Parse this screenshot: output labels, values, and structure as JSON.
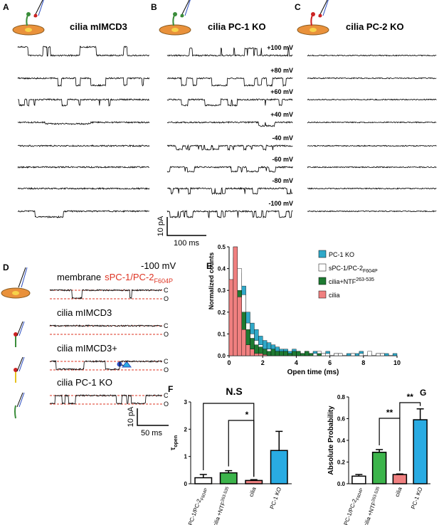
{
  "panels": {
    "A": {
      "letter": "A",
      "title": "cilia mIMCD3"
    },
    "B": {
      "letter": "B",
      "title": "cilia PC-1 KO"
    },
    "C": {
      "letter": "C",
      "title": "cilia PC-2 KO"
    },
    "voltages": [
      "+100 mV",
      "+80 mV",
      "+60 mV",
      "+40 mV",
      "-40 mV",
      "-60 mV",
      "-80 mV",
      "-100 mV"
    ],
    "scale_abc": {
      "current": "10 pA",
      "time": "100 ms"
    },
    "D": {
      "letter": "D",
      "voltage": "-100 mV",
      "rows": [
        {
          "label": "membrane",
          "label_red": "sPC-1/PC-2",
          "label_red_sub": "F604P"
        },
        {
          "label": "cilia mIMCD3"
        },
        {
          "label": "cilia mIMCD3+"
        },
        {
          "label": "cilia  PC-1 KO"
        }
      ],
      "closed": "C",
      "open": "O",
      "scale": {
        "current": "10 pA",
        "time": "50 ms"
      }
    }
  },
  "chart_data": [
    {
      "panel": "E",
      "type": "histogram",
      "xlabel": "Open time (ms)",
      "ylabel": "Normalized counts",
      "bins": [
        0,
        0.25,
        0.5,
        0.75,
        1,
        1.25,
        1.5,
        1.75,
        2,
        2.25,
        2.5,
        2.75,
        3,
        3.25,
        3.5,
        3.75,
        4,
        4.25,
        4.5,
        4.75,
        5,
        5.25,
        5.5,
        5.75,
        6,
        6.25,
        6.5,
        6.75,
        7,
        7.25,
        7.5,
        7.75,
        8,
        8.25,
        8.5,
        8.75,
        9,
        9.25,
        9.5,
        9.75,
        10
      ],
      "xlim": [
        0,
        10
      ],
      "xticks": [
        0,
        2,
        4,
        6,
        8,
        10
      ],
      "ylim": [
        0,
        0.5
      ],
      "yticks": [
        {
          "value": 0,
          "label": "0.0"
        },
        0.1,
        0.2,
        0.3,
        0.4,
        0.5
      ],
      "series": [
        {
          "name": "PC-1 KO",
          "color": "#2fa8c8",
          "values": [
            0.3,
            0.5,
            0.38,
            0.32,
            0.2,
            0.15,
            0.12,
            0.09,
            0.07,
            0.06,
            0.05,
            0.04,
            0.03,
            0.03,
            0.02,
            0.03,
            0.02,
            0.01,
            0.02,
            0.01,
            0.02,
            0.01,
            0.01,
            0.02,
            0,
            0.01,
            0.01,
            0,
            0.01,
            0.01,
            0.01,
            0.02,
            0,
            0.01,
            0,
            0.01,
            0.01,
            0.01,
            0,
            0.01
          ]
        },
        {
          "name": "sPC-1/PC-2",
          "name_sub": "F604P",
          "color": "#ffffff",
          "values": [
            0.3,
            0.45,
            0.4,
            0.28,
            0.15,
            0.1,
            0.07,
            0.05,
            0.03,
            0.03,
            0.02,
            0.02,
            0.01,
            0.02,
            0.01,
            0.01,
            0.02,
            0.01,
            0.01,
            0.01,
            0.01,
            0.02,
            0.01,
            0.01,
            0,
            0.01,
            0.01,
            0,
            0,
            0.01,
            0,
            0.01,
            0,
            0.02,
            0,
            0.01,
            0.01,
            0,
            0,
            0
          ]
        },
        {
          "name": "cilia+NTF",
          "name_sup": "263-535",
          "color": "#1e7a32",
          "values": [
            0.25,
            0.45,
            0.3,
            0.2,
            0.12,
            0.08,
            0.05,
            0.04,
            0.03,
            0.02,
            0.03,
            0.02,
            0.02,
            0.02,
            0.01,
            0.02,
            0.02,
            0.01,
            0.02,
            0.01,
            0,
            0.01,
            0,
            0,
            0,
            0,
            0,
            0,
            0,
            0,
            0,
            0,
            0,
            0,
            0,
            0,
            0,
            0,
            0,
            0
          ]
        },
        {
          "name": "cilia",
          "color": "#f08080",
          "values": [
            0.35,
            0.5,
            0.27,
            0.12,
            0.05,
            0.03,
            0.01,
            0.01,
            0.005,
            0,
            0,
            0,
            0,
            0,
            0,
            0,
            0,
            0,
            0,
            0,
            0,
            0,
            0,
            0,
            0,
            0,
            0,
            0,
            0,
            0,
            0,
            0,
            0,
            0,
            0,
            0,
            0,
            0,
            0,
            0
          ]
        }
      ]
    },
    {
      "panel": "F",
      "type": "bar",
      "title": "N.S",
      "ylabel": "τ",
      "ylabel_sub": "open",
      "categories": [
        "sPC-1/PC-2",
        "cilia +NTF",
        "cilia",
        "PC-1 KO"
      ],
      "category_subscripts": {
        "0": "F604P",
        "1": "263-535"
      },
      "values": [
        0.22,
        0.4,
        0.12,
        1.22
      ],
      "errors": [
        0.12,
        0.08,
        0.03,
        0.7
      ],
      "colors": [
        "#ffffff",
        "#3cb44b",
        "#f08080",
        "#29abe2"
      ],
      "ylim": [
        0,
        3
      ],
      "yticks": [
        0,
        1,
        2,
        3
      ],
      "annotations": [
        "*"
      ]
    },
    {
      "panel": "G",
      "type": "bar",
      "ylabel": "Absolute Probability",
      "categories": [
        "sPC-1/PC-2",
        "cilia +NTF",
        "cilia",
        "PC-1 KO"
      ],
      "category_subscripts": {
        "0": "F604P",
        "1": "263-535"
      },
      "values": [
        0.07,
        0.29,
        0.085,
        0.59
      ],
      "errors": [
        0.015,
        0.025,
        0.005,
        0.1
      ],
      "colors": [
        "#ffffff",
        "#3cb44b",
        "#f08080",
        "#29abe2"
      ],
      "ylim": [
        0,
        0.8
      ],
      "yticks": [
        {
          "value": 0,
          "label": "0.0"
        },
        0.2,
        0.4,
        0.6,
        0.8
      ],
      "annotations": [
        "**",
        "**"
      ]
    }
  ]
}
